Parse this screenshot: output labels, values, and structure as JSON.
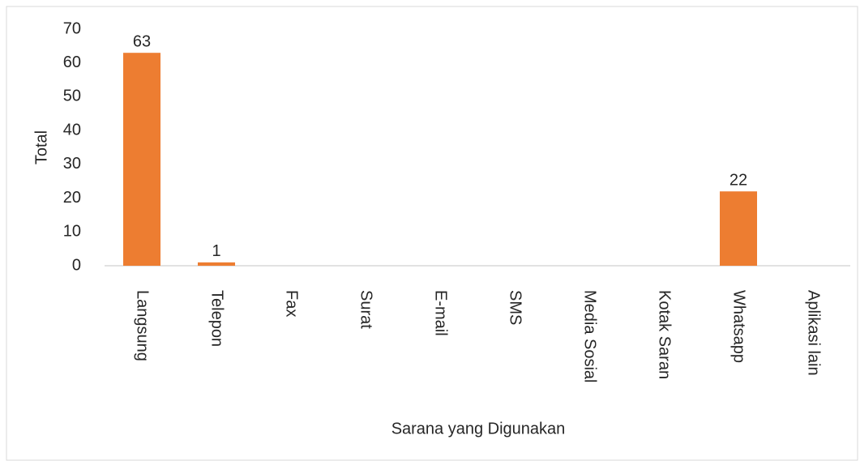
{
  "chart_data": {
    "type": "bar",
    "categories": [
      "Langsung",
      "Telepon",
      "Fax",
      "Surat",
      "E-mail",
      "SMS",
      "Media Sosial",
      "Kotak Saran",
      "Whatsapp",
      "Aplikasi lain"
    ],
    "values": [
      63,
      1,
      0,
      0,
      0,
      0,
      0,
      0,
      22,
      0
    ],
    "color": "#ed7d31",
    "ylim": [
      0,
      70
    ],
    "yticks": [
      0,
      10,
      20,
      30,
      40,
      50,
      60,
      70
    ],
    "xlabel": "Sarana yang Digunakan",
    "ylabel": "Total",
    "grid": false
  }
}
